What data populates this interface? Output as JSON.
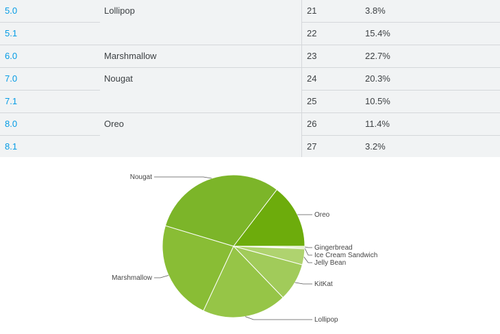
{
  "table": {
    "rows": [
      {
        "version": "5.0",
        "codename": "Lollipop",
        "api": "21",
        "distribution": "3.8%"
      },
      {
        "version": "5.1",
        "codename": "",
        "api": "22",
        "distribution": "15.4%"
      },
      {
        "version": "6.0",
        "codename": "Marshmallow",
        "api": "23",
        "distribution": "22.7%"
      },
      {
        "version": "7.0",
        "codename": "Nougat",
        "api": "24",
        "distribution": "20.3%"
      },
      {
        "version": "7.1",
        "codename": "",
        "api": "25",
        "distribution": "10.5%"
      },
      {
        "version": "8.0",
        "codename": "Oreo",
        "api": "26",
        "distribution": "11.4%"
      },
      {
        "version": "8.1",
        "codename": "",
        "api": "27",
        "distribution": "3.2%"
      }
    ]
  },
  "chart_data": {
    "type": "pie",
    "slices": [
      {
        "label": "Gingerbread",
        "value": 0.3
      },
      {
        "label": "Ice Cream Sandwich",
        "value": 0.3
      },
      {
        "label": "Jelly Bean",
        "value": 3.6
      },
      {
        "label": "KitKat",
        "value": 8.6
      },
      {
        "label": "Lollipop",
        "value": 19.2
      },
      {
        "label": "Marshmallow",
        "value": 22.7
      },
      {
        "label": "Nougat",
        "value": 30.8
      },
      {
        "label": "Oreo",
        "value": 14.6
      }
    ],
    "colors": [
      "#cfe4a1",
      "#c2dd8a",
      "#afd36f",
      "#a1cb5a",
      "#96c547",
      "#89bd35",
      "#7cb529",
      "#6dac0c"
    ],
    "edge_color": "#ffffff",
    "leader_color": "#555555"
  }
}
